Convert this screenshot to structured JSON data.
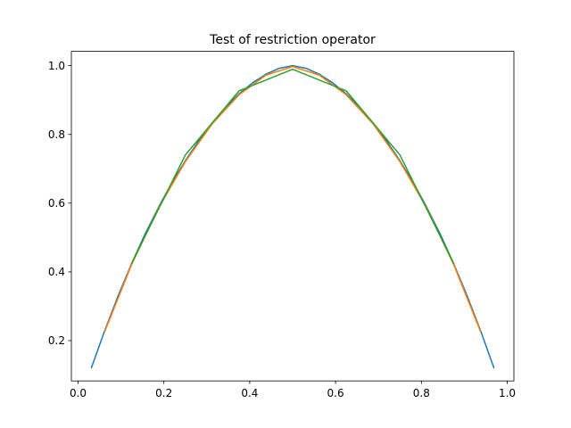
{
  "chart_data": {
    "type": "line",
    "title": "Test of restriction operator",
    "xlabel": "",
    "ylabel": "",
    "xlim": [
      -0.0156,
      1.0156
    ],
    "ylim": [
      0.0828,
      1.0416
    ],
    "xticks": [
      0.0,
      0.2,
      0.4,
      0.6,
      0.8,
      1.0
    ],
    "xtick_labels": [
      "0.0",
      "0.2",
      "0.4",
      "0.6",
      "0.8",
      "1.0"
    ],
    "yticks": [
      0.2,
      0.4,
      0.6,
      0.8,
      1.0
    ],
    "ytick_labels": [
      "0.2",
      "0.4",
      "0.6",
      "0.8",
      "1.0"
    ],
    "grid": false,
    "legend": "none",
    "series": [
      {
        "color": "#1f77b4",
        "x": [
          0.03125,
          0.0625,
          0.09375,
          0.125,
          0.15625,
          0.1875,
          0.21875,
          0.25,
          0.28125,
          0.3125,
          0.34375,
          0.375,
          0.40625,
          0.4375,
          0.46875,
          0.5,
          0.53125,
          0.5625,
          0.59375,
          0.625,
          0.65625,
          0.6875,
          0.71875,
          0.75,
          0.78125,
          0.8125,
          0.84375,
          0.875,
          0.90625,
          0.9375,
          0.96875
        ],
        "y": [
          0.1219,
          0.2304,
          0.3316,
          0.4249,
          0.5104,
          0.5884,
          0.6593,
          0.7235,
          0.7815,
          0.8332,
          0.8789,
          0.9178,
          0.9496,
          0.9748,
          0.9923,
          1.0,
          0.9923,
          0.9748,
          0.9496,
          0.9178,
          0.8789,
          0.8332,
          0.7815,
          0.7235,
          0.6593,
          0.5884,
          0.5104,
          0.4249,
          0.3316,
          0.2304,
          0.1219
        ]
      },
      {
        "color": "#ff7f0e",
        "x": [
          0.0625,
          0.125,
          0.1875,
          0.25,
          0.3125,
          0.375,
          0.4375,
          0.5,
          0.5625,
          0.625,
          0.6875,
          0.75,
          0.8125,
          0.875,
          0.9375
        ],
        "y": [
          0.2276,
          0.4221,
          0.5856,
          0.7207,
          0.8305,
          0.915,
          0.9721,
          0.9974,
          0.9721,
          0.915,
          0.8305,
          0.7207,
          0.5856,
          0.4221,
          0.2276
        ]
      },
      {
        "color": "#2ca02c",
        "x": [
          0.125,
          0.25,
          0.375,
          0.5,
          0.625,
          0.75,
          0.875
        ],
        "y": [
          0.4256,
          0.7401,
          0.9265,
          0.9895,
          0.9265,
          0.7401,
          0.4256
        ]
      }
    ]
  }
}
